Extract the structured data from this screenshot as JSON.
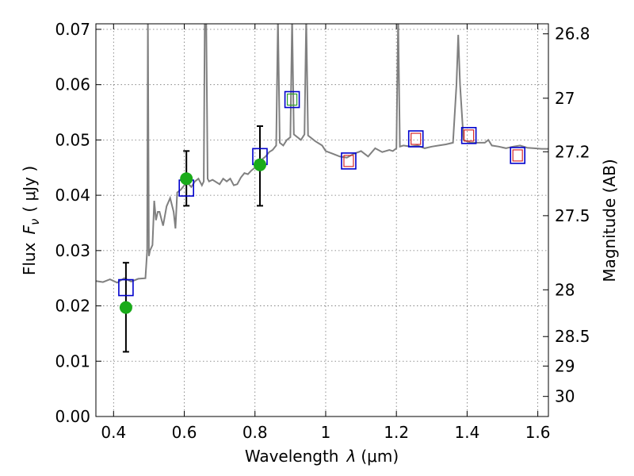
{
  "chart_data": {
    "type": "scatter",
    "xlabel_prefix": "Wavelength",
    "xlabel_symbol": "λ",
    "xlabel_unit": "(μm)",
    "ylabel_prefix": "Flux",
    "ylabel_symbol": "F",
    "ylabel_subscript": "ν",
    "ylabel_unit": "( μJy )",
    "y2label": "Magnitude (AB)",
    "xlim": [
      0.35,
      1.63
    ],
    "ylim": [
      0.0,
      0.071
    ],
    "grid": true,
    "x_ticks": [
      {
        "value": 0.4,
        "label": "0.4"
      },
      {
        "value": 0.6,
        "label": "0.6"
      },
      {
        "value": 0.8,
        "label": "0.8"
      },
      {
        "value": 1.0,
        "label": "1"
      },
      {
        "value": 1.2,
        "label": "1.2"
      },
      {
        "value": 1.4,
        "label": "1.4"
      },
      {
        "value": 1.6,
        "label": "1.6"
      }
    ],
    "y_ticks": [
      {
        "value": 0.0,
        "label": "0.00"
      },
      {
        "value": 0.01,
        "label": "0.01"
      },
      {
        "value": 0.02,
        "label": "0.02"
      },
      {
        "value": 0.03,
        "label": "0.03"
      },
      {
        "value": 0.04,
        "label": "0.04"
      },
      {
        "value": 0.05,
        "label": "0.05"
      },
      {
        "value": 0.06,
        "label": "0.06"
      },
      {
        "value": 0.07,
        "label": "0.07"
      }
    ],
    "y2_ticks": [
      {
        "mag": 26.8,
        "label": "26.8"
      },
      {
        "mag": 27.0,
        "label": "27"
      },
      {
        "mag": 27.2,
        "label": "27.2"
      },
      {
        "mag": 27.5,
        "label": "27.5"
      },
      {
        "mag": 28.0,
        "label": "28"
      },
      {
        "mag": 28.5,
        "label": "28.5"
      },
      {
        "mag": 29.0,
        "label": "29"
      },
      {
        "mag": 30.0,
        "label": "30"
      }
    ],
    "colors": {
      "spectrum": "#808080",
      "observed": "#1aab1a",
      "model_box": "#0000cc",
      "green_box": "#2ca02c",
      "red_box": "#d62728",
      "errorbar": "#000000"
    },
    "spectrum": [
      [
        0.35,
        0.0245
      ],
      [
        0.37,
        0.0243
      ],
      [
        0.39,
        0.0248
      ],
      [
        0.41,
        0.0242
      ],
      [
        0.43,
        0.025
      ],
      [
        0.45,
        0.0244
      ],
      [
        0.47,
        0.0249
      ],
      [
        0.49,
        0.025
      ],
      [
        0.495,
        0.03
      ],
      [
        0.497,
        0.072
      ],
      [
        0.5,
        0.029
      ],
      [
        0.503,
        0.03
      ],
      [
        0.51,
        0.031
      ],
      [
        0.515,
        0.039
      ],
      [
        0.52,
        0.0355
      ],
      [
        0.525,
        0.037
      ],
      [
        0.53,
        0.037
      ],
      [
        0.54,
        0.0345
      ],
      [
        0.55,
        0.038
      ],
      [
        0.56,
        0.0395
      ],
      [
        0.57,
        0.037
      ],
      [
        0.575,
        0.034
      ],
      [
        0.58,
        0.0405
      ],
      [
        0.59,
        0.041
      ],
      [
        0.6,
        0.0418
      ],
      [
        0.61,
        0.0422
      ],
      [
        0.62,
        0.0415
      ],
      [
        0.63,
        0.0425
      ],
      [
        0.64,
        0.043
      ],
      [
        0.65,
        0.0418
      ],
      [
        0.655,
        0.0425
      ],
      [
        0.658,
        0.072
      ],
      [
        0.662,
        0.072
      ],
      [
        0.666,
        0.043
      ],
      [
        0.67,
        0.0425
      ],
      [
        0.68,
        0.0428
      ],
      [
        0.7,
        0.042
      ],
      [
        0.71,
        0.043
      ],
      [
        0.72,
        0.0425
      ],
      [
        0.73,
        0.043
      ],
      [
        0.74,
        0.0418
      ],
      [
        0.75,
        0.042
      ],
      [
        0.76,
        0.0432
      ],
      [
        0.77,
        0.044
      ],
      [
        0.78,
        0.0438
      ],
      [
        0.79,
        0.0445
      ],
      [
        0.8,
        0.045
      ],
      [
        0.81,
        0.046
      ],
      [
        0.82,
        0.0465
      ],
      [
        0.83,
        0.047
      ],
      [
        0.84,
        0.0478
      ],
      [
        0.85,
        0.0482
      ],
      [
        0.86,
        0.049
      ],
      [
        0.865,
        0.072
      ],
      [
        0.87,
        0.0495
      ],
      [
        0.88,
        0.049
      ],
      [
        0.89,
        0.05
      ],
      [
        0.9,
        0.0505
      ],
      [
        0.905,
        0.072
      ],
      [
        0.91,
        0.051
      ],
      [
        0.92,
        0.0505
      ],
      [
        0.93,
        0.05
      ],
      [
        0.94,
        0.051
      ],
      [
        0.945,
        0.072
      ],
      [
        0.95,
        0.0508
      ],
      [
        0.97,
        0.0498
      ],
      [
        0.99,
        0.049
      ],
      [
        1.0,
        0.048
      ],
      [
        1.02,
        0.0475
      ],
      [
        1.04,
        0.047
      ],
      [
        1.06,
        0.0468
      ],
      [
        1.08,
        0.0475
      ],
      [
        1.1,
        0.048
      ],
      [
        1.12,
        0.047
      ],
      [
        1.14,
        0.0485
      ],
      [
        1.16,
        0.0478
      ],
      [
        1.18,
        0.0482
      ],
      [
        1.19,
        0.048
      ],
      [
        1.2,
        0.0485
      ],
      [
        1.205,
        0.072
      ],
      [
        1.21,
        0.0488
      ],
      [
        1.22,
        0.049
      ],
      [
        1.24,
        0.0488
      ],
      [
        1.26,
        0.049
      ],
      [
        1.28,
        0.0485
      ],
      [
        1.3,
        0.0488
      ],
      [
        1.32,
        0.049
      ],
      [
        1.34,
        0.0492
      ],
      [
        1.36,
        0.0495
      ],
      [
        1.37,
        0.06
      ],
      [
        1.375,
        0.069
      ],
      [
        1.38,
        0.06
      ],
      [
        1.39,
        0.05
      ],
      [
        1.41,
        0.0495
      ],
      [
        1.43,
        0.0495
      ],
      [
        1.45,
        0.0495
      ],
      [
        1.46,
        0.05
      ],
      [
        1.47,
        0.049
      ],
      [
        1.49,
        0.0488
      ],
      [
        1.51,
        0.0485
      ],
      [
        1.53,
        0.0488
      ],
      [
        1.55,
        0.049
      ],
      [
        1.57,
        0.0486
      ],
      [
        1.59,
        0.0485
      ],
      [
        1.61,
        0.0484
      ],
      [
        1.63,
        0.0484
      ]
    ],
    "observed": [
      {
        "x": 0.435,
        "y": 0.0197,
        "yerr_low": 0.0117,
        "yerr_high": 0.0278
      },
      {
        "x": 0.606,
        "y": 0.043,
        "yerr_low": 0.0381,
        "yerr_high": 0.048
      },
      {
        "x": 0.814,
        "y": 0.0455,
        "yerr_low": 0.0381,
        "yerr_high": 0.0525
      }
    ],
    "model_boxes": [
      {
        "x": 0.435,
        "y": 0.0233,
        "inner": "none"
      },
      {
        "x": 0.606,
        "y": 0.0413,
        "inner": "none"
      },
      {
        "x": 0.814,
        "y": 0.047,
        "inner": "none"
      },
      {
        "x": 0.905,
        "y": 0.0573,
        "inner": "green"
      },
      {
        "x": 1.065,
        "y": 0.0462,
        "inner": "red"
      },
      {
        "x": 1.255,
        "y": 0.0502,
        "inner": "red"
      },
      {
        "x": 1.405,
        "y": 0.0508,
        "inner": "red"
      },
      {
        "x": 1.543,
        "y": 0.0472,
        "inner": "red"
      }
    ]
  }
}
